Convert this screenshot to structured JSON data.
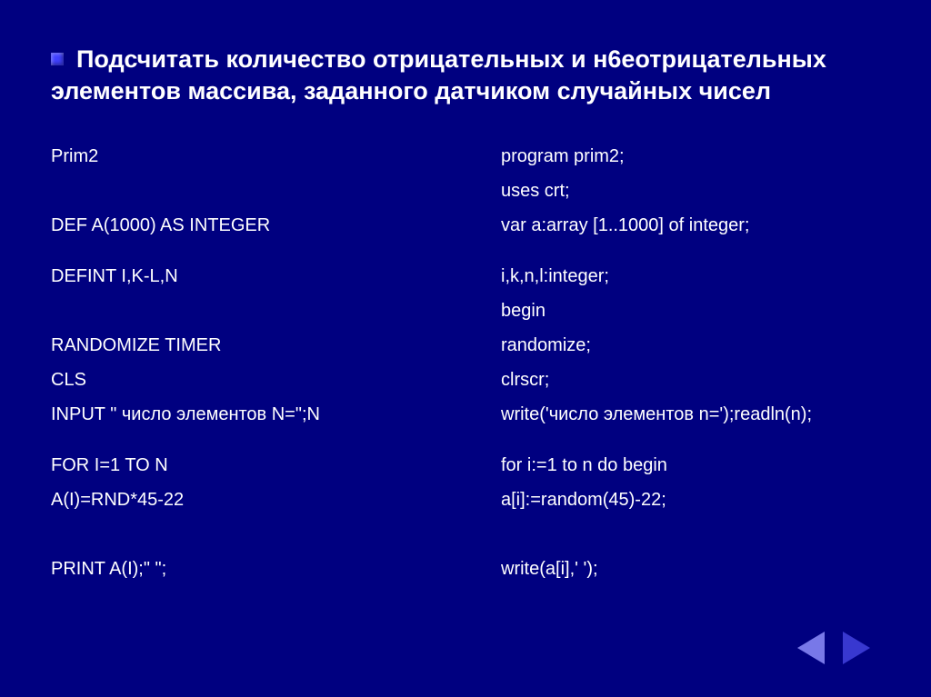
{
  "title": "Подсчитать количество отрицательных и н6еотрицательных элементов массива, заданного датчиком случайных чисел",
  "left": {
    "r0": "Prim2",
    "r1": "",
    "r2": "DEF A(1000) AS INTEGER",
    "r3": "",
    "r4": "DEFINT I,K-L,N",
    "r5": "",
    "r6": "RANDOMIZE  TIMER",
    "r7": "CLS",
    "r8": "INPUT \" число элементов N=\";N",
    "r9": "",
    "r10": "FOR I=1 TO N",
    "r11": "A(I)=RND*45-22",
    "r12": "",
    "r13": "PRINT A(I);\" \";"
  },
  "right": {
    "r0": "program prim2;",
    "r1": "uses crt;",
    "r2": "var a:array [1..1000] of integer;",
    "r4": "i,k,n,l:integer;",
    "r5": "begin",
    "r6": "randomize;",
    "r7": "clrscr;",
    "r8": "write('число элементов n=');readln(n);",
    "r10": "for i:=1 to n do begin",
    "r11": " a[i]:=random(45)-22;",
    "r12": "",
    "r13": " write(a[i],'  ');"
  },
  "colors": {
    "background": "#000080",
    "text": "#ffffff",
    "bullet": "#4040ff",
    "nav_prev": "#7878e8",
    "nav_next": "#3838d0"
  },
  "typography": {
    "title_fontsize": 27,
    "body_fontsize": 20,
    "font_family": "Verdana, Arial, sans-serif"
  }
}
